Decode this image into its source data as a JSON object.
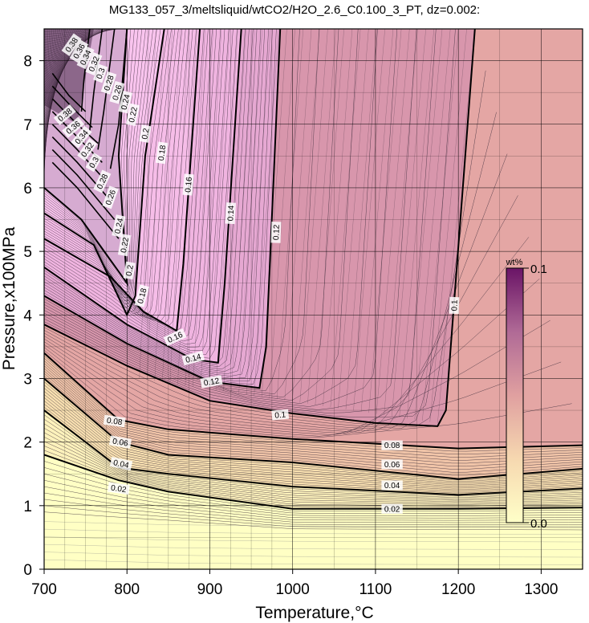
{
  "chart_data": {
    "type": "heatmap",
    "title": "MG133_057_3/meltsliquid/wtCO2/H2O_2.6_C0.100_3_PT, dz=0.002:",
    "xlabel": "Temperature,°C",
    "ylabel": "Pressure,x100MPa",
    "xlim": [
      700,
      1350
    ],
    "ylim": [
      0,
      8.5
    ],
    "xticks": [
      700,
      800,
      900,
      1000,
      1100,
      1200,
      1300
    ],
    "yticks": [
      0,
      1,
      2,
      3,
      4,
      5,
      6,
      7,
      8
    ],
    "grid": true,
    "colorbar": {
      "unit": "wt%",
      "min": 0.0,
      "max": 0.1,
      "min_label": "0.0",
      "max_label": "0.1",
      "colors": [
        "#ffffc8",
        "#f6d8b0",
        "#e0a0a0",
        "#b06a96",
        "#6a1466"
      ]
    },
    "plateau_color": "#fbc8f0",
    "low_color": "#ffffc4",
    "contour_interval": 0.002,
    "bold_contour_interval": 0.02,
    "lower_contours": [
      {
        "label": "0.02",
        "points": [
          [
            700,
            1.8
          ],
          [
            790,
            1.4
          ],
          [
            850,
            1.22
          ],
          [
            1000,
            0.95
          ],
          [
            1200,
            0.95
          ],
          [
            1350,
            0.97
          ]
        ]
      },
      {
        "label": "0.04",
        "points": [
          [
            700,
            2.5
          ],
          [
            790,
            1.6
          ],
          [
            850,
            1.5
          ],
          [
            1000,
            1.3
          ],
          [
            1200,
            1.17
          ],
          [
            1350,
            1.27
          ]
        ]
      },
      {
        "label": "0.06",
        "points": [
          [
            700,
            3.0
          ],
          [
            790,
            2.0
          ],
          [
            850,
            1.8
          ],
          [
            1000,
            1.68
          ],
          [
            1200,
            1.42
          ],
          [
            1350,
            1.58
          ]
        ]
      },
      {
        "label": "0.08",
        "points": [
          [
            700,
            3.4
          ],
          [
            790,
            2.35
          ],
          [
            850,
            2.2
          ],
          [
            1000,
            2.05
          ],
          [
            1200,
            1.9
          ],
          [
            1350,
            1.95
          ]
        ]
      },
      {
        "label": "0.1",
        "points": [
          [
            700,
            3.85
          ],
          [
            800,
            3.2
          ],
          [
            900,
            2.65
          ],
          [
            1000,
            2.45
          ],
          [
            1100,
            2.3
          ],
          [
            1175,
            2.25
          ],
          [
            1185,
            2.5
          ],
          [
            1220,
            8.5
          ]
        ]
      },
      {
        "label": "0.12",
        "points": [
          [
            700,
            4.3
          ],
          [
            800,
            3.55
          ],
          [
            900,
            2.95
          ],
          [
            960,
            2.85
          ],
          [
            968,
            3.5
          ],
          [
            985,
            8.5
          ]
        ]
      },
      {
        "label": "0.14",
        "points": [
          [
            700,
            4.75
          ],
          [
            800,
            3.85
          ],
          [
            880,
            3.3
          ],
          [
            910,
            3.25
          ],
          [
            918,
            4.5
          ],
          [
            938,
            8.5
          ]
        ]
      },
      {
        "label": "0.16",
        "points": [
          [
            700,
            5.2
          ],
          [
            780,
            4.6
          ],
          [
            820,
            4.05
          ],
          [
            860,
            3.75
          ],
          [
            868,
            4.8
          ],
          [
            888,
            8.5
          ]
        ]
      },
      {
        "label": "0.18",
        "points": [
          [
            700,
            5.6
          ],
          [
            760,
            5.1
          ],
          [
            800,
            4.0
          ],
          [
            810,
            4.3
          ],
          [
            822,
            6.5
          ],
          [
            845,
            8.5
          ]
        ]
      },
      {
        "label": "0.2",
        "points": [
          [
            700,
            6.0
          ],
          [
            745,
            5.5
          ],
          [
            800,
            4.5
          ],
          [
            790,
            6.5
          ],
          [
            800,
            8.5
          ]
        ]
      }
    ],
    "upper_contours": [
      {
        "label": "0.22",
        "points": [
          [
            710,
            6.4
          ],
          [
            740,
            6.0
          ],
          [
            790,
            5.2
          ]
        ]
      },
      {
        "label": "0.24",
        "points": [
          [
            710,
            6.6
          ],
          [
            740,
            6.2
          ],
          [
            785,
            5.5
          ]
        ]
      },
      {
        "label": "0.26",
        "points": [
          [
            710,
            6.8
          ],
          [
            740,
            6.4
          ],
          [
            780,
            5.8
          ]
        ]
      },
      {
        "label": "0.28",
        "points": [
          [
            710,
            7.0
          ],
          [
            740,
            6.6
          ],
          [
            775,
            6.1
          ]
        ]
      },
      {
        "label": "0.3",
        "points": [
          [
            710,
            7.2
          ],
          [
            740,
            6.8
          ],
          [
            770,
            6.4
          ]
        ]
      },
      {
        "label": "0.32",
        "points": [
          [
            710,
            7.4
          ],
          [
            740,
            7.0
          ],
          [
            765,
            6.7
          ]
        ]
      },
      {
        "label": "0.34",
        "points": [
          [
            710,
            7.6
          ],
          [
            735,
            7.25
          ],
          [
            758,
            6.95
          ]
        ]
      },
      {
        "label": "0.36",
        "points": [
          [
            710,
            7.8
          ],
          [
            730,
            7.45
          ],
          [
            750,
            7.2
          ]
        ]
      }
    ],
    "steep_contours": [
      {
        "label": "0.22",
        "points": [
          [
            780,
            6.3
          ],
          [
            790,
            7.0
          ],
          [
            800,
            8.5
          ]
        ]
      },
      {
        "label": "0.24",
        "points": [
          [
            765,
            6.6
          ],
          [
            772,
            7.2
          ],
          [
            785,
            8.5
          ]
        ]
      },
      {
        "label": "0.26",
        "points": [
          [
            755,
            6.9
          ],
          [
            760,
            7.5
          ],
          [
            770,
            8.5
          ]
        ]
      },
      {
        "label": "0.28",
        "points": [
          [
            745,
            7.2
          ],
          [
            748,
            7.7
          ],
          [
            755,
            8.5
          ]
        ]
      }
    ]
  },
  "contour_labels": [
    {
      "text": "0.02",
      "x": 790,
      "y": 1.27,
      "rot": 8
    },
    {
      "text": "0.04",
      "x": 793,
      "y": 1.66,
      "rot": 12
    },
    {
      "text": "0.06",
      "x": 792,
      "y": 2.0,
      "rot": 10
    },
    {
      "text": "0.08",
      "x": 785,
      "y": 2.33,
      "rot": 8
    },
    {
      "text": "0.1",
      "x": 985,
      "y": 2.43,
      "rot": -5
    },
    {
      "text": "0.12",
      "x": 902,
      "y": 2.95,
      "rot": -10
    },
    {
      "text": "0.14",
      "x": 880,
      "y": 3.32,
      "rot": -15
    },
    {
      "text": "0.16",
      "x": 858,
      "y": 3.65,
      "rot": -25
    },
    {
      "text": "0.18",
      "x": 818,
      "y": 4.3,
      "rot": -75
    },
    {
      "text": "0.2",
      "x": 803,
      "y": 4.7,
      "rot": -80
    },
    {
      "text": "0.22",
      "x": 797,
      "y": 5.1,
      "rot": -80
    },
    {
      "text": "0.24",
      "x": 790,
      "y": 5.4,
      "rot": -78
    },
    {
      "text": "0.26",
      "x": 780,
      "y": 5.85,
      "rot": -70
    },
    {
      "text": "0.28",
      "x": 770,
      "y": 6.1,
      "rot": -65
    },
    {
      "text": "0.3",
      "x": 760,
      "y": 6.4,
      "rot": -60
    },
    {
      "text": "0.32",
      "x": 752,
      "y": 6.6,
      "rot": -55
    },
    {
      "text": "0.34",
      "x": 745,
      "y": 6.8,
      "rot": -50
    },
    {
      "text": "0.36",
      "x": 735,
      "y": 6.95,
      "rot": -40
    },
    {
      "text": "0.38",
      "x": 725,
      "y": 7.15,
      "rot": -40
    },
    {
      "text": "0.08",
      "x": 1120,
      "y": 1.95,
      "rot": 0
    },
    {
      "text": "0.06",
      "x": 1120,
      "y": 1.65,
      "rot": 0
    },
    {
      "text": "0.04",
      "x": 1120,
      "y": 1.32,
      "rot": 0
    },
    {
      "text": "0.02",
      "x": 1120,
      "y": 0.95,
      "rot": 0
    },
    {
      "text": "0.1",
      "x": 1195,
      "y": 4.15,
      "rot": -88
    },
    {
      "text": "0.12",
      "x": 980,
      "y": 5.3,
      "rot": -88
    },
    {
      "text": "0.14",
      "x": 925,
      "y": 5.6,
      "rot": -87
    },
    {
      "text": "0.16",
      "x": 874,
      "y": 6.05,
      "rot": -85
    },
    {
      "text": "0.18",
      "x": 842,
      "y": 6.55,
      "rot": -82
    },
    {
      "text": "0.2",
      "x": 822,
      "y": 6.85,
      "rot": -80
    },
    {
      "text": "0.22",
      "x": 807,
      "y": 7.15,
      "rot": -78
    },
    {
      "text": "0.24",
      "x": 798,
      "y": 7.35,
      "rot": -76
    },
    {
      "text": "0.26",
      "x": 788,
      "y": 7.5,
      "rot": -74
    },
    {
      "text": "0.28",
      "x": 778,
      "y": 7.65,
      "rot": -72
    },
    {
      "text": "0.3",
      "x": 768,
      "y": 7.8,
      "rot": -70
    },
    {
      "text": "0.32",
      "x": 760,
      "y": 7.95,
      "rot": -68
    },
    {
      "text": "0.34",
      "x": 750,
      "y": 8.05,
      "rot": -65
    },
    {
      "text": "0.36",
      "x": 742,
      "y": 8.15,
      "rot": -60
    },
    {
      "text": "0.38",
      "x": 733,
      "y": 8.25,
      "rot": -55
    }
  ]
}
